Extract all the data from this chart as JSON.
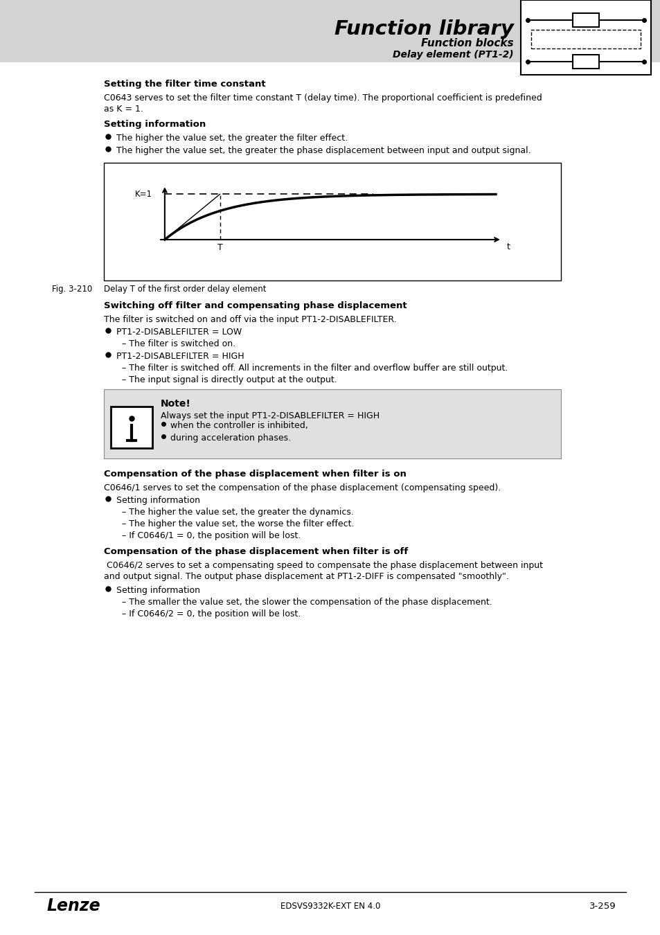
{
  "page_bg": "#ffffff",
  "header_bg": "#d3d3d3",
  "header_title": "Function library",
  "header_sub1": "Function blocks",
  "header_sub2": "Delay element (PT1-2)",
  "fig_label": "Fig. 3-210",
  "fig_caption": "Delay T of the first order delay element",
  "footer_left": "Lenze",
  "footer_center": "EDSVS9332K-EXT EN 4.0",
  "footer_right": "3-259"
}
